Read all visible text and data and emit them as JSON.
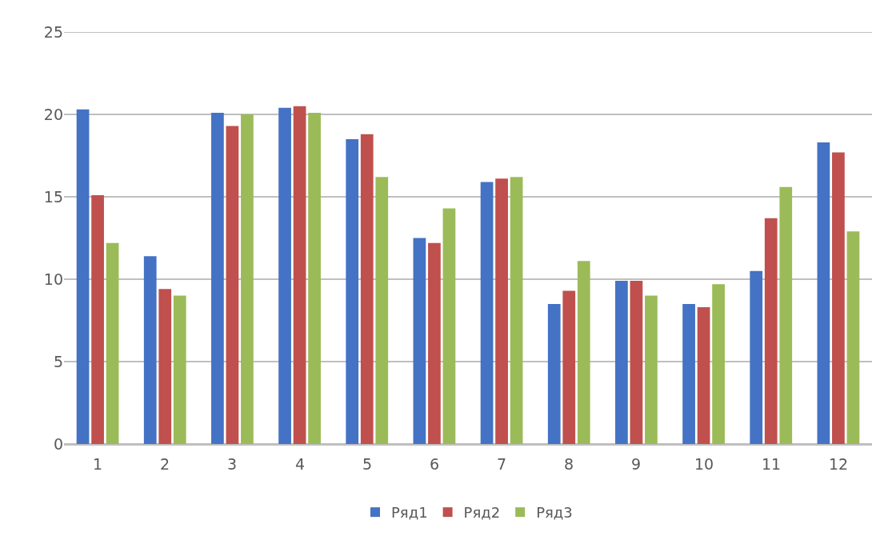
{
  "chart_data": {
    "type": "bar",
    "categories": [
      "1",
      "2",
      "3",
      "4",
      "5",
      "6",
      "7",
      "8",
      "9",
      "10",
      "11",
      "12"
    ],
    "series": [
      {
        "name": "Ряд1",
        "color": "#4472c4",
        "values": [
          20.3,
          11.4,
          20.1,
          20.4,
          18.5,
          12.5,
          15.9,
          8.5,
          9.9,
          8.5,
          10.5,
          18.3
        ]
      },
      {
        "name": "Ряд2",
        "color": "#c0504d",
        "values": [
          15.1,
          9.4,
          19.3,
          20.5,
          18.8,
          12.2,
          16.1,
          9.3,
          9.9,
          8.3,
          13.7,
          17.7
        ]
      },
      {
        "name": "Ряд3",
        "color": "#9bbb59",
        "values": [
          12.2,
          9.0,
          20.0,
          20.1,
          16.2,
          14.3,
          16.2,
          11.1,
          9.0,
          9.7,
          15.6,
          12.9
        ]
      }
    ],
    "ylim": [
      0,
      25
    ],
    "yticks": [
      0,
      5,
      10,
      15,
      20,
      25
    ],
    "grid": "y",
    "legend": "bottom"
  }
}
